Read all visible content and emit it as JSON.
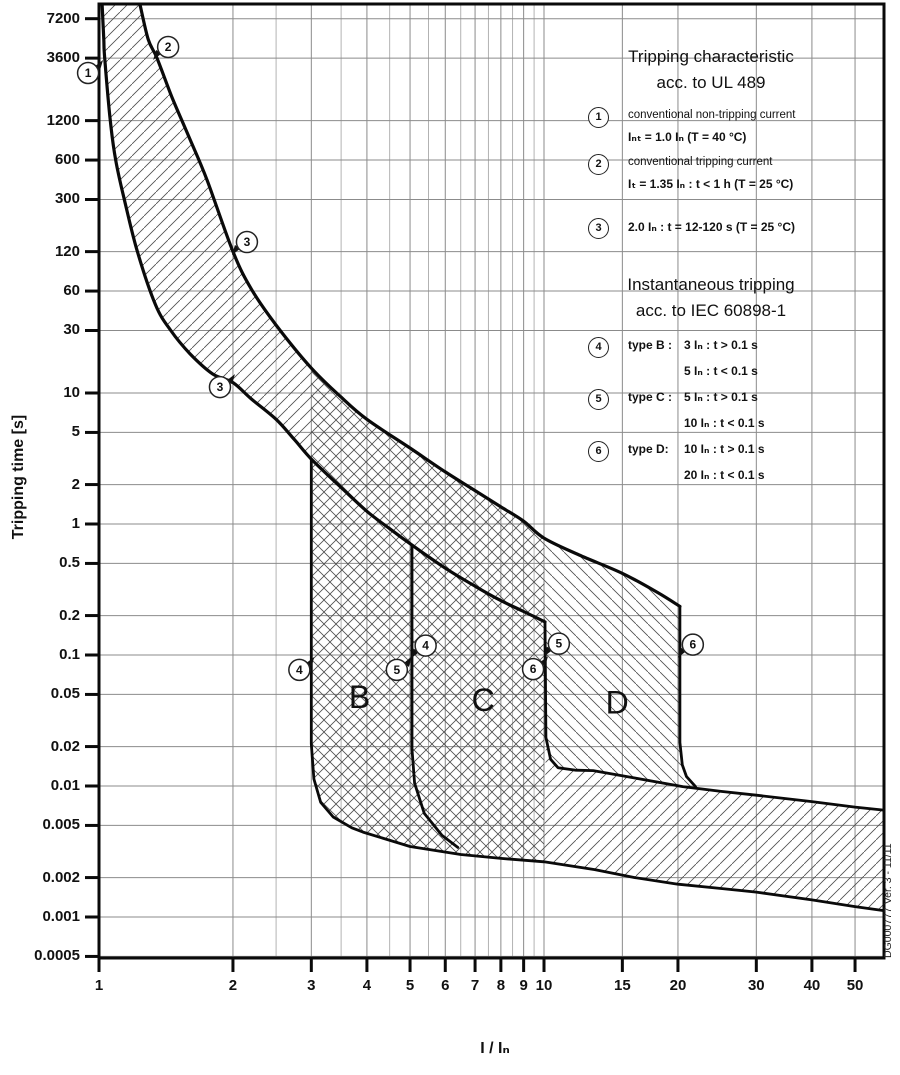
{
  "chart_data": {
    "type": "line",
    "title": "Tripping characteristic acc. to UL 489",
    "xlabel": "I / Iₙ",
    "ylabel": "Tripping time [s]",
    "x_scale": "log",
    "y_scale": "log",
    "x_range": [
      1,
      58
    ],
    "y_range": [
      0.00048,
      9300
    ],
    "grid": "on",
    "x_ticks": [
      1,
      2,
      3,
      4,
      5,
      6,
      7,
      8,
      9,
      10,
      15,
      20,
      30,
      40,
      50
    ],
    "x_minor_gridlines": [
      2.5,
      3.5,
      4.5,
      5.5,
      6.5,
      7.5,
      8.5,
      9.5
    ],
    "y_ticks": [
      "7200",
      "3600",
      "1200",
      "600",
      "300",
      "120",
      "60",
      "30",
      "10",
      "5",
      "2",
      "1",
      "0.5",
      "0.2",
      "0.1",
      "0.05",
      "0.02",
      "0.01",
      "0.005",
      "0.002",
      "0.001",
      "0.0005"
    ],
    "curves": {
      "lower_thermal": [
        [
          1.016,
          9300
        ],
        [
          1.025,
          5000
        ],
        [
          1.03,
          3600
        ],
        [
          1.06,
          1200
        ],
        [
          1.09,
          600
        ],
        [
          1.14,
          300
        ],
        [
          1.22,
          120
        ],
        [
          1.34,
          47
        ],
        [
          1.45,
          30
        ],
        [
          1.6,
          20
        ],
        [
          1.8,
          14
        ],
        [
          2.0,
          12
        ],
        [
          2.2,
          9
        ],
        [
          2.5,
          6.3
        ],
        [
          2.75,
          4.4
        ],
        [
          3.0,
          3.13
        ]
      ],
      "lower_internal": [
        [
          3.0,
          3.13
        ],
        [
          3.5,
          1.9
        ],
        [
          4.0,
          1.25
        ],
        [
          4.5,
          0.92
        ],
        [
          5.05,
          0.69
        ],
        [
          6.0,
          0.46
        ],
        [
          7.0,
          0.335
        ],
        [
          8.0,
          0.26
        ],
        [
          9.0,
          0.215
        ],
        [
          10.05,
          0.179
        ]
      ],
      "upper_thermal": [
        [
          1.236,
          9300
        ],
        [
          1.29,
          5000
        ],
        [
          1.35,
          3600
        ],
        [
          1.46,
          1800
        ],
        [
          1.6,
          870
        ],
        [
          1.75,
          420
        ],
        [
          2.0,
          120
        ],
        [
          2.2,
          62
        ],
        [
          2.5,
          33
        ],
        [
          3.0,
          15.5
        ],
        [
          3.5,
          9.3
        ],
        [
          4.0,
          6.3
        ],
        [
          5.0,
          3.8
        ],
        [
          6.0,
          2.5
        ],
        [
          7.0,
          1.8
        ],
        [
          8.0,
          1.35
        ],
        [
          9.0,
          1.05
        ],
        [
          10.0,
          0.78
        ],
        [
          12.0,
          0.58
        ],
        [
          15.0,
          0.42
        ],
        [
          18.0,
          0.3
        ],
        [
          20.2,
          0.235
        ]
      ],
      "b_instantaneous_drop": [
        [
          3.0,
          3.13
        ],
        [
          3.0,
          0.021
        ],
        [
          3.04,
          0.0113
        ],
        [
          3.15,
          0.0075
        ],
        [
          3.36,
          0.0058
        ],
        [
          3.7,
          0.0048
        ],
        [
          3.92,
          0.00445
        ]
      ],
      "lower_band_bottom": [
        [
          3.92,
          0.00445
        ],
        [
          5.0,
          0.00345
        ],
        [
          6.5,
          0.003
        ],
        [
          8.0,
          0.0028
        ],
        [
          10.0,
          0.00264
        ],
        [
          13.0,
          0.0023
        ],
        [
          16.0,
          0.002
        ],
        [
          20.0,
          0.00178
        ],
        [
          25.0,
          0.00165
        ],
        [
          30.0,
          0.00155
        ],
        [
          40.0,
          0.00135
        ],
        [
          50.0,
          0.0012
        ],
        [
          58.0,
          0.00112
        ]
      ],
      "c_instantaneous_drop": [
        [
          5.05,
          0.69
        ],
        [
          5.05,
          0.019
        ],
        [
          5.12,
          0.0105
        ],
        [
          5.38,
          0.0062
        ],
        [
          5.9,
          0.0042
        ],
        [
          6.4,
          0.0034
        ]
      ],
      "d_instantaneous_drop": [
        [
          10.05,
          0.179
        ],
        [
          10.1,
          0.0235
        ],
        [
          10.35,
          0.016
        ],
        [
          10.75,
          0.0138
        ],
        [
          11.8,
          0.0132
        ],
        [
          12.9,
          0.0131
        ]
      ],
      "upper_band_bottom": [
        [
          12.9,
          0.0131
        ],
        [
          16.0,
          0.0115
        ],
        [
          20.5,
          0.0099
        ],
        [
          25.0,
          0.0091
        ],
        [
          30.0,
          0.0085
        ],
        [
          40.0,
          0.0076
        ],
        [
          50.0,
          0.0069
        ],
        [
          58.0,
          0.00655
        ]
      ],
      "x20_drop": [
        [
          20.2,
          0.235
        ],
        [
          20.2,
          0.0215
        ],
        [
          20.45,
          0.0145
        ],
        [
          20.9,
          0.0118
        ],
        [
          21.9,
          0.0099
        ]
      ]
    },
    "region_labels": [
      {
        "label": "B",
        "x": 3.85,
        "t": 0.048
      },
      {
        "label": "C",
        "x": 7.3,
        "t": 0.0455
      },
      {
        "label": "D",
        "x": 14.6,
        "t": 0.0435
      }
    ],
    "callout_markers": [
      {
        "n": "1",
        "x": 0.945,
        "t": 2770,
        "flag": "tr"
      },
      {
        "n": "2",
        "x": 1.43,
        "t": 4380,
        "flag": "bl"
      },
      {
        "n": "3",
        "x": 2.15,
        "t": 142,
        "flag": "bl"
      },
      {
        "n": "3",
        "x": 1.87,
        "t": 11.1,
        "flag": "tr"
      },
      {
        "n": "4",
        "x": 2.82,
        "t": 0.077,
        "flag": "tr"
      },
      {
        "n": "4",
        "x": 5.42,
        "t": 0.118,
        "flag": "bl"
      },
      {
        "n": "5",
        "x": 4.67,
        "t": 0.077,
        "flag": "tr"
      },
      {
        "n": "5",
        "x": 10.8,
        "t": 0.122,
        "flag": "bl"
      },
      {
        "n": "6",
        "x": 9.45,
        "t": 0.078,
        "flag": "tr"
      },
      {
        "n": "6",
        "x": 21.6,
        "t": 0.12,
        "flag": "bl"
      }
    ]
  },
  "legend": {
    "block1_title_line1": "Tripping characteristic",
    "block1_title_line2": "acc. to UL 489",
    "items1": [
      {
        "num": "1",
        "line1": "conventional non-tripping current",
        "line2": "Iₙₜ  = 1.0 Iₙ   (T = 40 °C)"
      },
      {
        "num": "2",
        "line1": "conventional tripping current",
        "line2": "Iₜ  = 1.35 Iₙ :  t  < 1 h (T = 25 °C)"
      },
      {
        "num": "3",
        "line1": "",
        "line2": "2.0 Iₙ :  t = 12-120 s (T = 25 °C)"
      }
    ],
    "block2_title_line1": "Instantaneous tripping",
    "block2_title_line2": "acc. to IEC 60898-1",
    "items2": [
      {
        "num": "4",
        "label": "type B :",
        "val1": "3 Iₙ   : t > 0.1 s",
        "val2": "5 Iₙ   : t < 0.1 s"
      },
      {
        "num": "5",
        "label": "type C :",
        "val1": "5 Iₙ   : t > 0.1 s",
        "val2": "10 Iₙ  : t < 0.1 s"
      },
      {
        "num": "6",
        "label": "type D:",
        "val1": "10 Iₙ  : t > 0.1 s",
        "val2": "20 Iₙ  : t < 0.1 s"
      }
    ]
  },
  "footer": {
    "doc_number": "DG000777 Ver. 3 - 11/11"
  }
}
